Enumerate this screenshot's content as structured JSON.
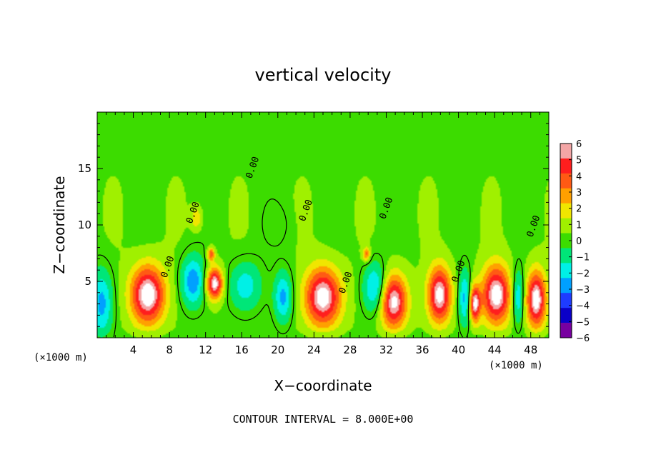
{
  "chart_data": {
    "type": "heatmap",
    "title": "vertical velocity",
    "xlabel": "X−coordinate",
    "ylabel": "Z−coordinate",
    "x_unit_left": "(×1000 m)",
    "x_unit_right": "(×1000 m)",
    "footer": "CONTOUR INTERVAL = 8.000E+00",
    "xlim": [
      0,
      50
    ],
    "ylim": [
      0,
      20
    ],
    "x_ticks": [
      4,
      8,
      12,
      16,
      20,
      24,
      28,
      32,
      36,
      40,
      44,
      48
    ],
    "x_tick_labels": [
      "4",
      "8",
      "12",
      "16",
      "20",
      "24",
      "28",
      "32",
      "36",
      "40",
      "44",
      "48"
    ],
    "y_ticks": [
      5,
      10,
      15
    ],
    "y_tick_labels": [
      "5",
      "10",
      "15"
    ],
    "colorbar": {
      "min": -6,
      "max": 6,
      "tick_labels": [
        "6",
        "5",
        "4",
        "3",
        "2",
        "1",
        "0",
        "−1",
        "−2",
        "−3",
        "−4",
        "−5",
        "−6"
      ],
      "colors": [
        "#f4a6a6",
        "#ff1e1e",
        "#ff5a14",
        "#ffa000",
        "#f0e600",
        "#a0f000",
        "#3cdc00",
        "#00e678",
        "#00f0e6",
        "#00a0ff",
        "#1e3cff",
        "#0a00c8",
        "#7800a0"
      ]
    },
    "zero_contour_label": "0.00",
    "zero_label_positions": [
      [
        10.9,
        11
      ],
      [
        17.5,
        15
      ],
      [
        23.4,
        11.2
      ],
      [
        27.8,
        4.8
      ],
      [
        32.3,
        11.4
      ],
      [
        40.3,
        5.8
      ],
      [
        48.6,
        9.8
      ],
      [
        8.1,
        6.2
      ]
    ],
    "cells": [
      {
        "x": 0.5,
        "z": 3.0,
        "w": -3.2,
        "sx": 1.2,
        "sz": 3.0
      },
      {
        "x": 5.6,
        "z": 3.8,
        "w": 6.8,
        "sx": 1.9,
        "sz": 2.6
      },
      {
        "x": 10.6,
        "z": 5.0,
        "w": -3.6,
        "sx": 1.3,
        "sz": 2.2
      },
      {
        "x": 13.0,
        "z": 4.8,
        "w": 6.5,
        "sx": 0.9,
        "sz": 1.4
      },
      {
        "x": 16.4,
        "z": 4.6,
        "w": -2.4,
        "sx": 1.8,
        "sz": 2.2
      },
      {
        "x": 20.6,
        "z": 3.6,
        "w": -3.2,
        "sx": 1.0,
        "sz": 2.2
      },
      {
        "x": 25.0,
        "z": 3.6,
        "w": 6.6,
        "sx": 2.0,
        "sz": 2.6
      },
      {
        "x": 30.8,
        "z": 4.4,
        "w": -3.4,
        "sx": 1.3,
        "sz": 2.2
      },
      {
        "x": 32.8,
        "z": 3.2,
        "w": 6.4,
        "sx": 1.5,
        "sz": 2.4
      },
      {
        "x": 37.9,
        "z": 3.8,
        "w": 6.4,
        "sx": 1.3,
        "sz": 2.5
      },
      {
        "x": 40.7,
        "z": 3.5,
        "w": -3.2,
        "sx": 0.7,
        "sz": 2.4
      },
      {
        "x": 41.8,
        "z": 3.0,
        "w": 6.0,
        "sx": 0.6,
        "sz": 1.6
      },
      {
        "x": 44.2,
        "z": 3.8,
        "w": 6.6,
        "sx": 1.6,
        "sz": 2.6
      },
      {
        "x": 46.6,
        "z": 3.6,
        "w": -3.2,
        "sx": 0.7,
        "sz": 2.4
      },
      {
        "x": 48.6,
        "z": 3.4,
        "w": 6.6,
        "sx": 1.1,
        "sz": 2.5
      },
      {
        "x": 11.0,
        "z": 10.6,
        "w": 2.2,
        "sx": 0.6,
        "sz": 1.0
      },
      {
        "x": 12.6,
        "z": 7.4,
        "w": 4.0,
        "sx": 0.4,
        "sz": 0.6
      },
      {
        "x": 29.8,
        "z": 7.4,
        "w": 3.5,
        "sx": 0.4,
        "sz": 0.6
      },
      {
        "x": 20.0,
        "z": 10.0,
        "w": -0.5,
        "sx": 1.6,
        "sz": 1.8
      }
    ]
  }
}
